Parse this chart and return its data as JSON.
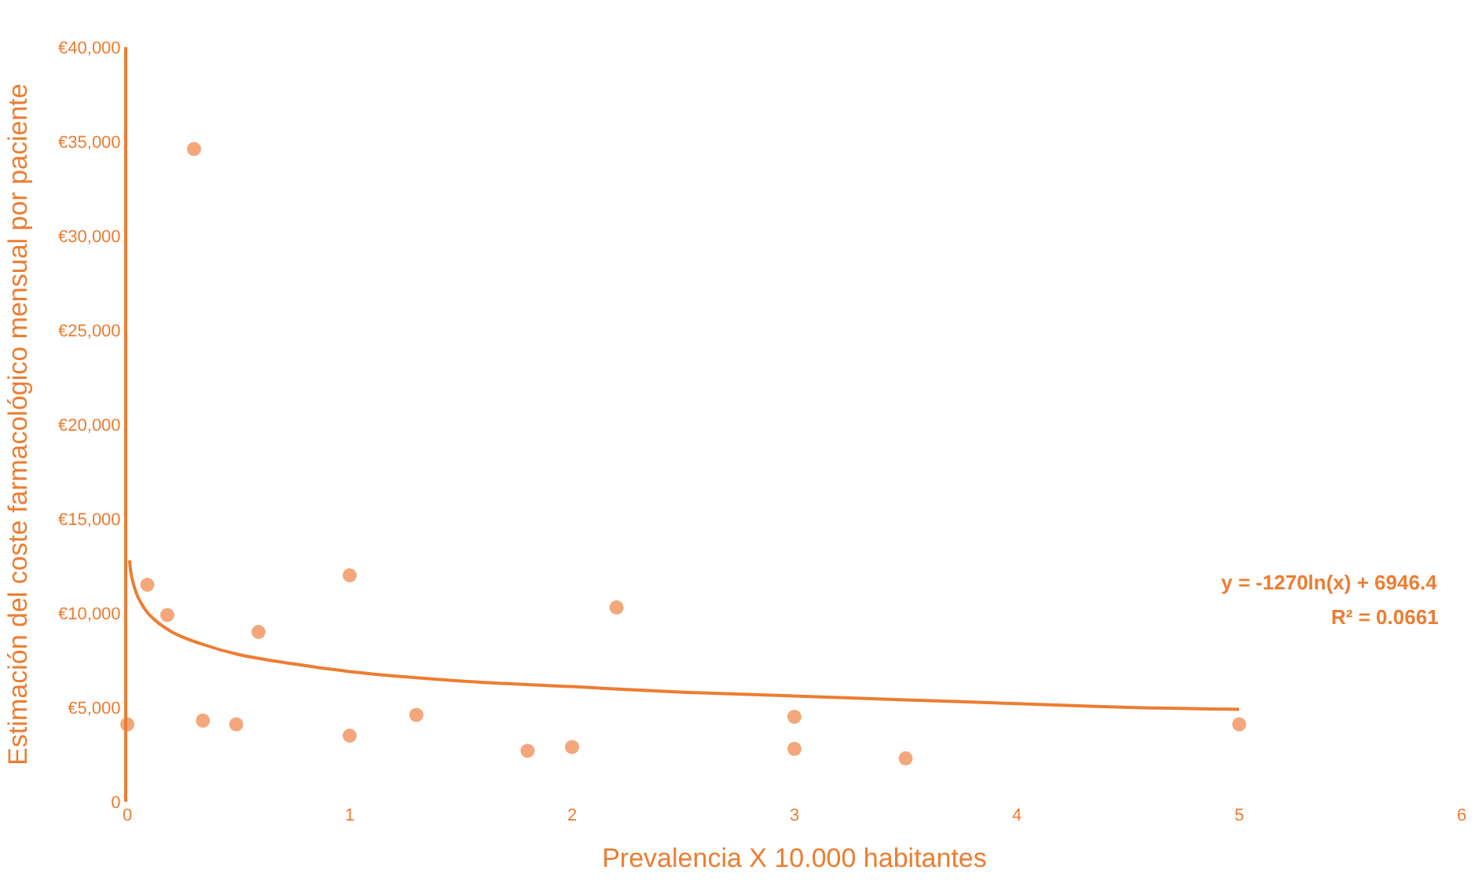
{
  "chart_data": {
    "type": "scatter",
    "xlabel": "Prevalencia X 10.000 habitantes",
    "ylabel": "Estimación del coste farmacológico mensual por paciente",
    "xlim": [
      0,
      6
    ],
    "xticks": [
      0,
      1,
      2,
      3,
      4,
      5,
      6
    ],
    "ylim": [
      0,
      40000
    ],
    "yticks": [
      {
        "value": 0,
        "label": "0"
      },
      {
        "value": 5000,
        "label": "€5,000"
      },
      {
        "value": 10000,
        "label": "€10,000"
      },
      {
        "value": 15000,
        "label": "€15,000"
      },
      {
        "value": 20000,
        "label": "€20,000"
      },
      {
        "value": 25000,
        "label": "€25,000"
      },
      {
        "value": 30000,
        "label": "€30,000"
      },
      {
        "value": 35000,
        "label": "€35,000"
      },
      {
        "value": 40000,
        "label": "€40,000"
      }
    ],
    "marker": "circle",
    "series": [
      {
        "color": "#f4a77a",
        "x": [
          0.0,
          0.09,
          0.18,
          0.3,
          0.34,
          0.49,
          0.59,
          1.0,
          1.0,
          1.3,
          1.8,
          2.0,
          2.2,
          3.0,
          3.0,
          3.5,
          5.0
        ],
        "values": [
          4100,
          11500,
          9900,
          34600,
          4300,
          4100,
          9000,
          12000,
          3500,
          4600,
          2700,
          2900,
          10300,
          4500,
          2800,
          2300,
          4100
        ]
      },
      {
        "type": "line",
        "color": "#ed7d31",
        "marker": "none",
        "x": [
          0.01,
          0.02,
          0.05,
          0.1,
          0.2,
          0.3,
          0.5,
          0.75,
          1,
          1.5,
          2,
          2.5,
          3,
          3.5,
          4,
          4.5,
          5
        ],
        "values": [
          12800,
          11900,
          10800,
          9900,
          9000,
          8500,
          7800,
          7300,
          6900,
          6400,
          6100,
          5800,
          5600,
          5400,
          5200,
          5000,
          4900
        ]
      }
    ],
    "annotations": [
      "y = -1270ln(x) + 6946.4",
      "R² = 0.0661"
    ]
  }
}
